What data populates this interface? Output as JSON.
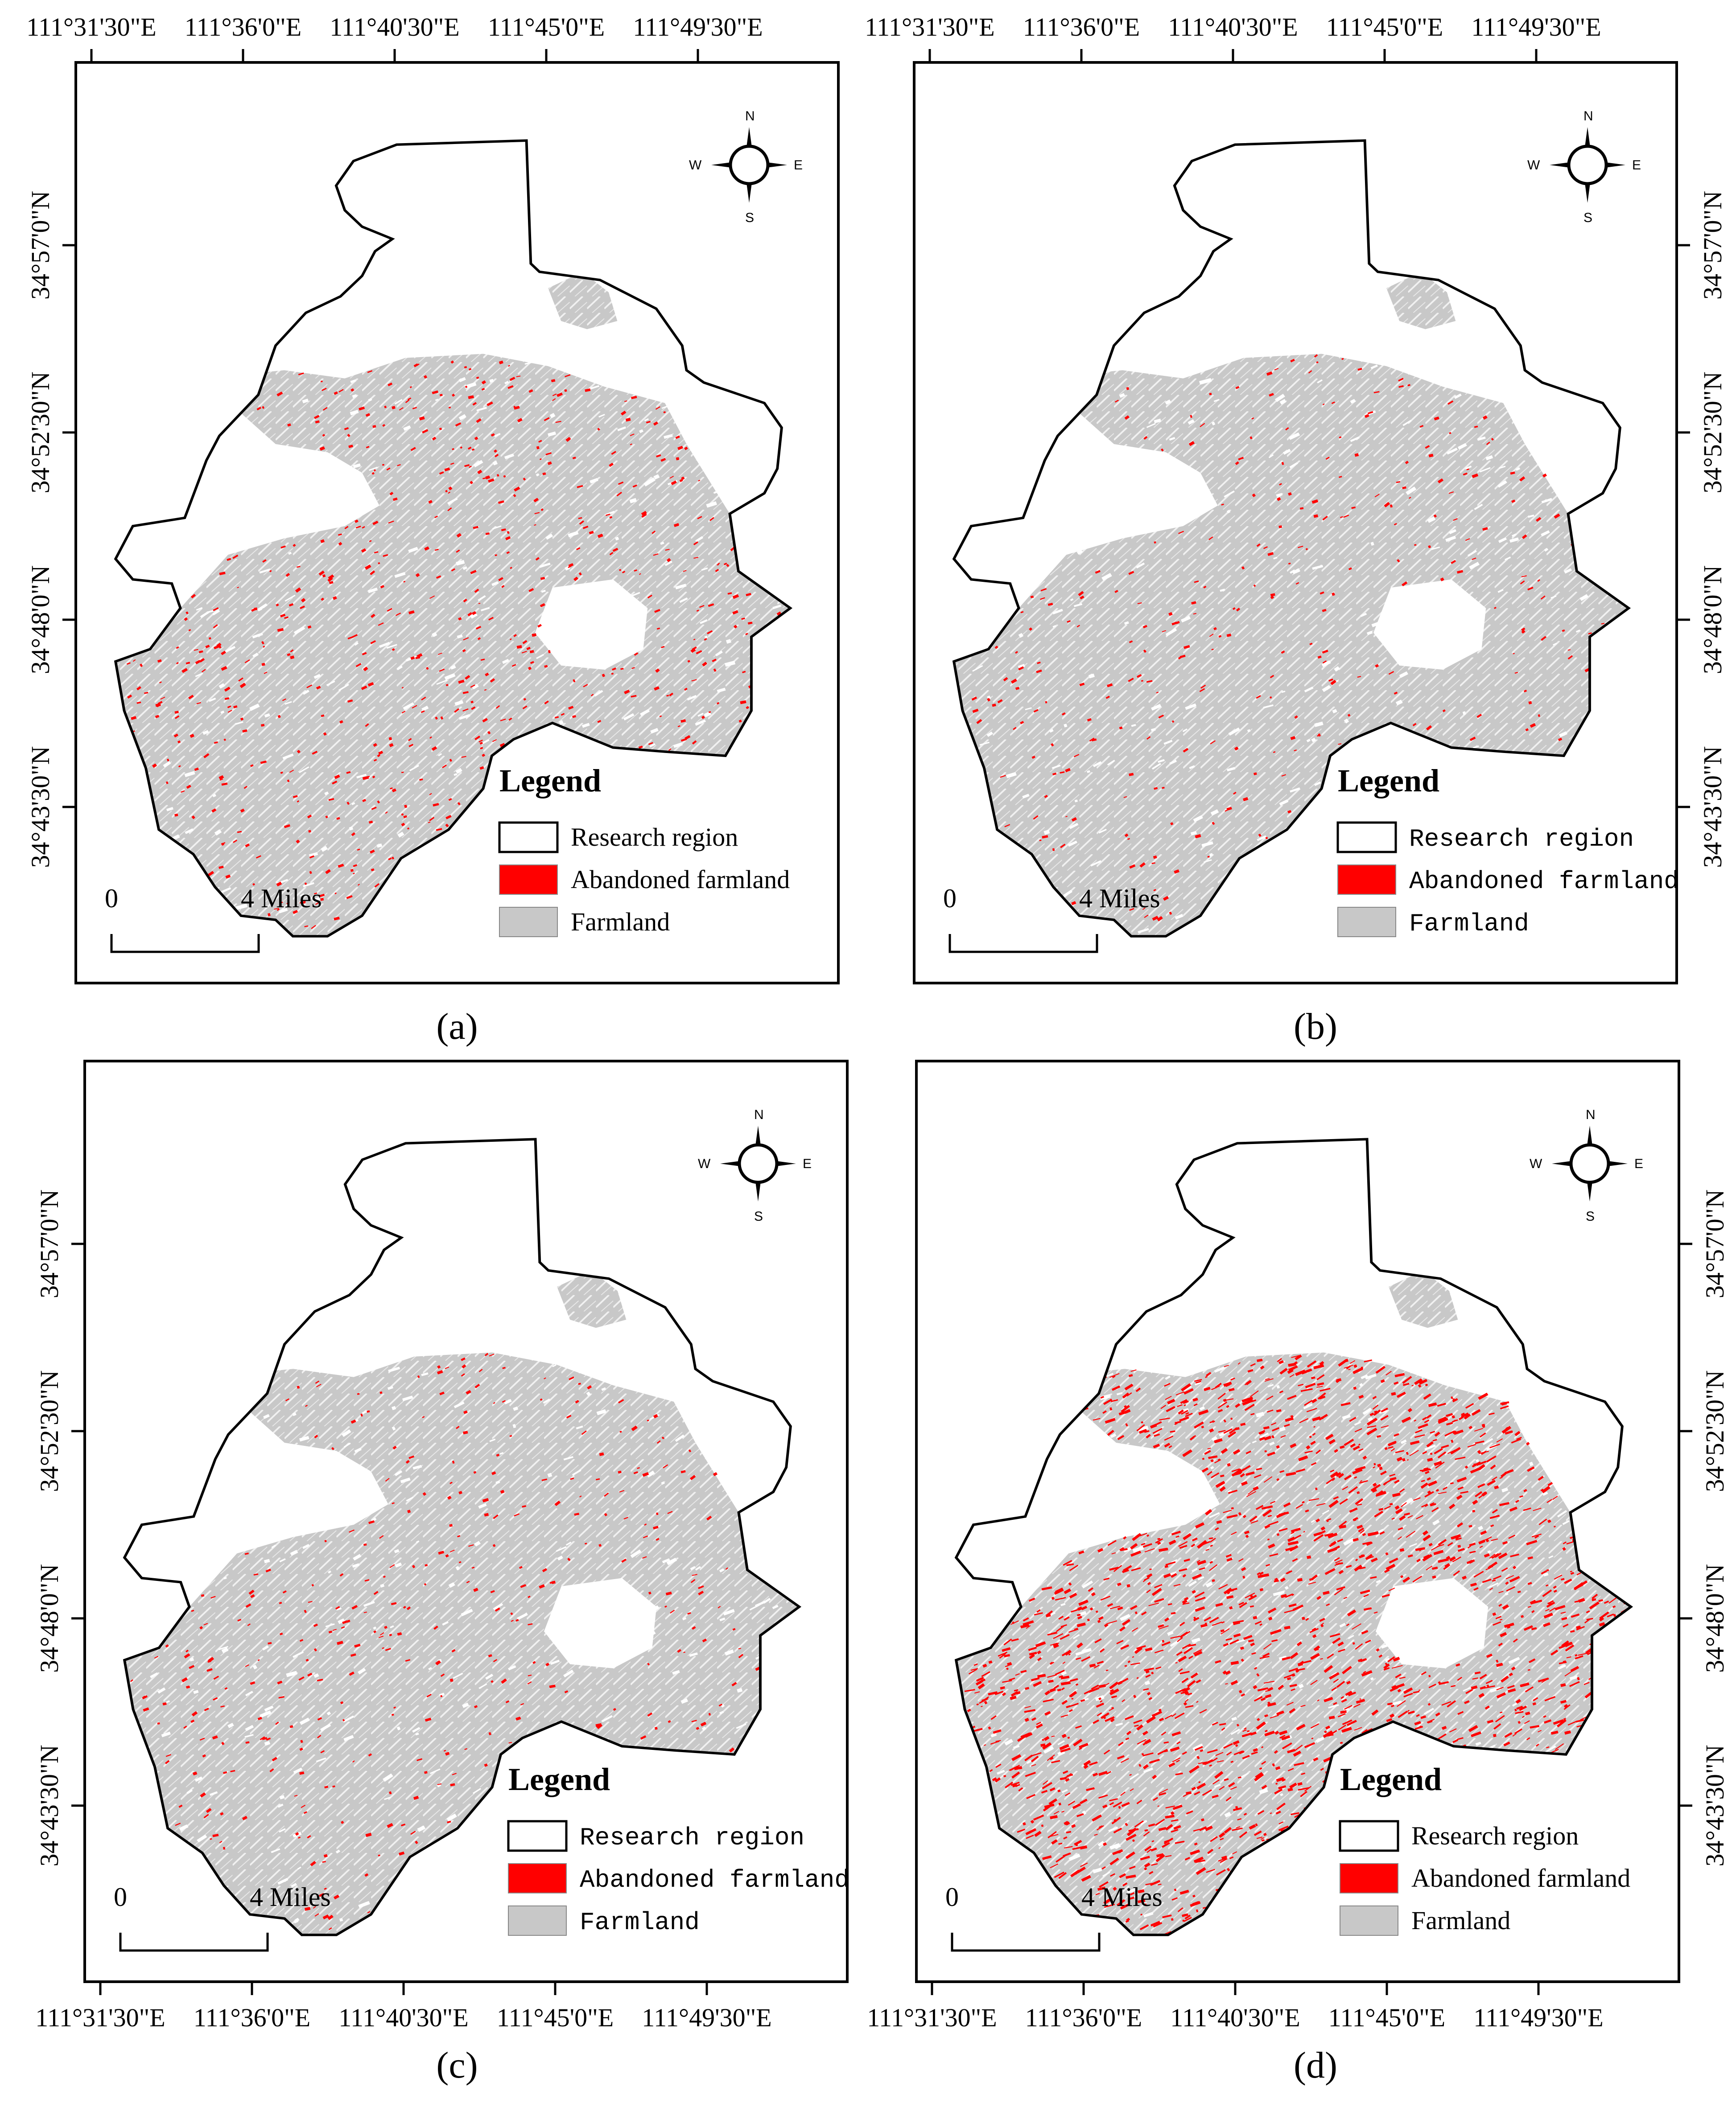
{
  "figure": {
    "panels": [
      {
        "caption": "(a)",
        "lon_ticks": [
          "111°31'30\"E",
          "111°36'0\"E",
          "111°40'30\"E",
          "111°45'0\"E",
          "111°49'30\"E"
        ],
        "lat_ticks": [
          "34°57'0\"N",
          "34°52'30\"N",
          "34°48'0\"N",
          "34°43'30\"N"
        ],
        "abandoned_density": 0.25
      },
      {
        "caption": "(b)",
        "lon_ticks": [
          "111°31'30\"E",
          "111°36'0\"E",
          "111°40'30\"E",
          "111°45'0\"E",
          "111°49'30\"E"
        ],
        "lat_ticks": [
          "34°57'0\"N",
          "34°52'30\"N",
          "34°48'0\"N",
          "34°43'30\"N"
        ],
        "abandoned_density": 0.12
      },
      {
        "caption": "(c)",
        "lon_ticks": [
          "111°31'30\"E",
          "111°36'0\"E",
          "111°40'30\"E",
          "111°45'0\"E",
          "111°49'30\"E"
        ],
        "lat_ticks": [
          "34°57'0\"N",
          "34°52'30\"N",
          "34°48'0\"N",
          "34°43'30\"N"
        ],
        "abandoned_density": 0.15
      },
      {
        "caption": "(d)",
        "lon_ticks": [
          "111°31'30\"E",
          "111°36'0\"E",
          "111°40'30\"E",
          "111°45'0\"E",
          "111°49'30\"E"
        ],
        "lat_ticks": [
          "34°57'0\"N",
          "34°52'30\"N",
          "34°48'0\"N",
          "34°43'30\"N"
        ],
        "abandoned_density": 0.75
      }
    ],
    "legend": {
      "title": "Legend",
      "items": [
        {
          "label": "Research region",
          "color": "#ffffff"
        },
        {
          "label": "Abandoned farmland",
          "color": "#ff0000"
        },
        {
          "label": "Farmland",
          "color": "#c8c8c8"
        }
      ]
    },
    "scale_bar": {
      "start_label": "0",
      "end_label": "4 Miles"
    },
    "compass": {
      "n": "N",
      "s": "S",
      "e": "E",
      "w": "W"
    },
    "colors": {
      "boundary": "#000000",
      "farmland": "#c8c8c8",
      "abandoned": "#ff0000",
      "frame": "#000000"
    }
  }
}
